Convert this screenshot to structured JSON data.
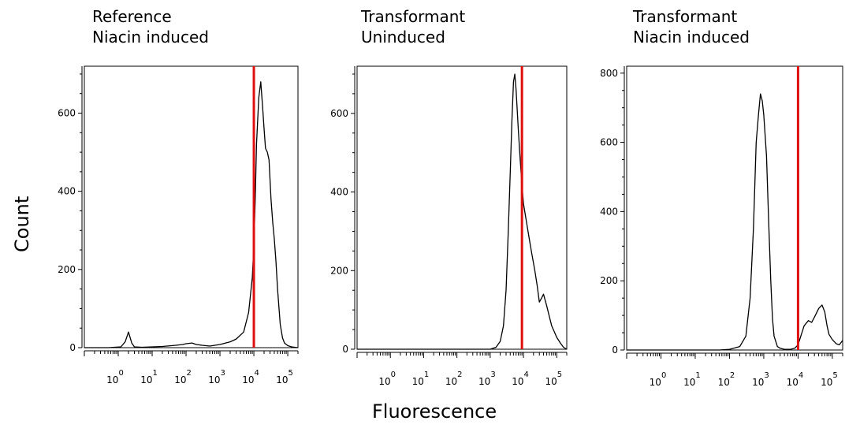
{
  "axis_titles": {
    "y": "Count",
    "x": "Fluorescence"
  },
  "panels": [
    {
      "title_line1": "Reference",
      "title_line2": "Niacin induced"
    },
    {
      "title_line1": "Transformant",
      "title_line2": "Uninduced"
    },
    {
      "title_line1": "Transformant",
      "title_line2": "Niacin induced"
    }
  ],
  "colors": {
    "curve": "#000000",
    "threshold": "#e01010",
    "frame": "#000000"
  },
  "chart_data": [
    {
      "type": "line",
      "title": "Reference\nNiacin induced",
      "xscale": "log",
      "xlim": [
        0.1,
        200000
      ],
      "ylim": [
        0,
        720
      ],
      "yticks": [
        0,
        200,
        400,
        600
      ],
      "xticks": [
        "10^0",
        "10^1",
        "10^2",
        "10^3",
        "10^4",
        "10^5"
      ],
      "threshold_x": 10000,
      "series": [
        {
          "x": [
            0.1,
            0.5,
            1.2,
            1.6,
            2.0,
            2.5,
            3,
            5,
            10,
            20,
            50,
            80,
            100,
            150,
            200,
            300,
            500,
            1000,
            2000,
            3000,
            5000,
            7000,
            9000,
            10000,
            11000,
            12000,
            14000,
            16000,
            18000,
            20000,
            22000,
            25000,
            28000,
            32000,
            36000,
            40000,
            45000,
            50000,
            60000,
            70000,
            80000,
            100000,
            130000,
            160000,
            200000
          ],
          "y": [
            0,
            0,
            2,
            15,
            40,
            12,
            2,
            1,
            2,
            3,
            6,
            8,
            10,
            12,
            8,
            6,
            4,
            8,
            15,
            22,
            40,
            90,
            180,
            260,
            380,
            520,
            640,
            680,
            620,
            560,
            510,
            500,
            480,
            380,
            320,
            280,
            220,
            150,
            60,
            25,
            12,
            5,
            2,
            1,
            0
          ]
        }
      ]
    },
    {
      "type": "line",
      "title": "Transformant\nUninduced",
      "xscale": "log",
      "xlim": [
        0.1,
        200000
      ],
      "ylim": [
        0,
        720
      ],
      "yticks": [
        0,
        200,
        400,
        600
      ],
      "xticks": [
        "10^0",
        "10^1",
        "10^2",
        "10^3",
        "10^4",
        "10^5"
      ],
      "threshold_x": 9000,
      "series": [
        {
          "x": [
            0.1,
            1,
            10,
            100,
            1000,
            1500,
            2000,
            2500,
            3000,
            3500,
            4000,
            4500,
            5000,
            5500,
            6000,
            7000,
            8000,
            9000,
            10000,
            12000,
            15000,
            18000,
            22000,
            26000,
            30000,
            35000,
            40000,
            50000,
            70000,
            100000,
            130000,
            160000,
            200000
          ],
          "y": [
            0,
            0,
            0,
            0,
            0,
            5,
            20,
            60,
            150,
            300,
            450,
            580,
            680,
            700,
            660,
            560,
            480,
            420,
            370,
            330,
            280,
            240,
            200,
            160,
            120,
            130,
            140,
            110,
            60,
            30,
            15,
            5,
            0
          ]
        }
      ]
    },
    {
      "type": "line",
      "title": "Transformant\nNiacin induced",
      "xscale": "log",
      "xlim": [
        0.1,
        200000
      ],
      "ylim": [
        0,
        820
      ],
      "yticks": [
        0,
        200,
        400,
        600,
        800
      ],
      "xticks": [
        "10^0",
        "10^1",
        "10^2",
        "10^3",
        "10^4",
        "10^5"
      ],
      "threshold_x": 10000,
      "series": [
        {
          "x": [
            0.1,
            1,
            10,
            50,
            100,
            200,
            300,
            400,
            500,
            600,
            700,
            800,
            900,
            1000,
            1200,
            1400,
            1600,
            1800,
            2000,
            2500,
            3000,
            4000,
            6000,
            8000,
            10000,
            12000,
            15000,
            20000,
            25000,
            30000,
            40000,
            50000,
            60000,
            70000,
            80000,
            100000,
            130000,
            160000,
            200000
          ],
          "y": [
            0,
            0,
            0,
            0,
            2,
            10,
            40,
            150,
            350,
            600,
            680,
            740,
            720,
            680,
            560,
            360,
            200,
            90,
            40,
            10,
            5,
            2,
            2,
            5,
            15,
            40,
            70,
            85,
            80,
            95,
            120,
            130,
            110,
            70,
            45,
            30,
            18,
            15,
            28
          ]
        }
      ]
    }
  ]
}
